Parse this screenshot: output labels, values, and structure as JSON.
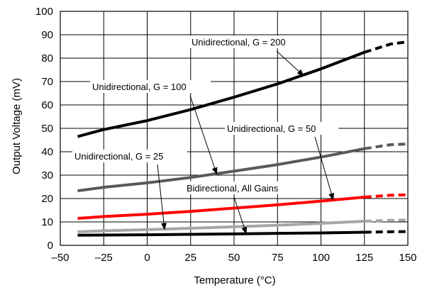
{
  "chart_data": {
    "type": "line",
    "xlabel": "Temperature (°C)",
    "ylabel": "Output Voltage (mV)",
    "xlim": [
      -50,
      150
    ],
    "ylim": [
      0,
      100
    ],
    "x_ticks": [
      -50,
      -25,
      0,
      25,
      50,
      75,
      100,
      125,
      150
    ],
    "y_ticks": [
      0,
      10,
      20,
      30,
      40,
      50,
      60,
      70,
      80,
      90,
      100
    ],
    "x_tick_labels": [
      "–50",
      "–25",
      "0",
      "25",
      "50",
      "75",
      "100",
      "125",
      "150"
    ],
    "y_tick_labels": [
      "0",
      "10",
      "20",
      "30",
      "40",
      "50",
      "60",
      "70",
      "80",
      "90",
      "100"
    ],
    "grid": true,
    "legend": "none",
    "solid_range": [
      -40,
      125
    ],
    "dashed_range": [
      125,
      150
    ],
    "series": [
      {
        "name": "Unidirectional, G = 200",
        "color": "#000000",
        "x": [
          -40,
          -25,
          0,
          25,
          50,
          75,
          100,
          125,
          140,
          150
        ],
        "y": [
          46.5,
          49.5,
          53.3,
          58.0,
          63.3,
          69.0,
          75.4,
          82.5,
          86.0,
          87.0
        ]
      },
      {
        "name": "Unidirectional, G = 100",
        "color": "#000000",
        "x": [
          -40,
          -25,
          0,
          25,
          50,
          75,
          100,
          125,
          140,
          150
        ],
        "y": [
          46.5,
          49.5,
          53.3,
          58.0,
          63.3,
          69.0,
          75.4,
          82.5,
          86.0,
          87.0
        ]
      },
      {
        "name": "Unidirectional, G = 50",
        "color": "#595959",
        "x": [
          -40,
          -25,
          0,
          25,
          50,
          75,
          100,
          125,
          140,
          150
        ],
        "y": [
          23.3,
          24.8,
          26.7,
          29.0,
          31.7,
          34.5,
          37.7,
          41.3,
          43.0,
          43.3
        ]
      },
      {
        "name": "Unidirectional, G = 25",
        "color": "#ff0000",
        "x": [
          -40,
          -25,
          0,
          25,
          50,
          75,
          100,
          125,
          140,
          150
        ],
        "y": [
          11.5,
          12.3,
          13.3,
          14.5,
          15.9,
          17.3,
          18.9,
          20.6,
          21.4,
          21.6
        ]
      },
      {
        "name": "Bidirectional, All Gains",
        "color": "#a6a6a6",
        "x": [
          -40,
          -25,
          0,
          25,
          50,
          75,
          100,
          125,
          140,
          150
        ],
        "y": [
          5.8,
          6.2,
          6.7,
          7.3,
          7.9,
          8.6,
          9.4,
          10.3,
          10.7,
          10.8
        ]
      },
      {
        "name": "",
        "color": "#000000",
        "x": [
          -40,
          -25,
          0,
          25,
          50,
          75,
          100,
          125,
          140,
          150
        ],
        "y": [
          4.3,
          4.4,
          4.5,
          4.7,
          4.9,
          5.1,
          5.3,
          5.6,
          5.8,
          5.9
        ]
      }
    ],
    "annotations": [
      {
        "text": "Unidirectional, G = 200",
        "target": {
          "x": 90,
          "y": 72.5
        }
      },
      {
        "text": "Unidirectional, G = 100",
        "target": {
          "x": 40,
          "y": 30.5
        }
      },
      {
        "text": "Unidirectional, G = 50",
        "target": {
          "x": 107,
          "y": 19.5
        }
      },
      {
        "text": "Unidirectional, G = 25",
        "target": {
          "x": 10,
          "y": 6.8
        }
      },
      {
        "text": "Bidirectional, All Gains",
        "target": {
          "x": 57,
          "y": 5.0
        }
      }
    ]
  }
}
